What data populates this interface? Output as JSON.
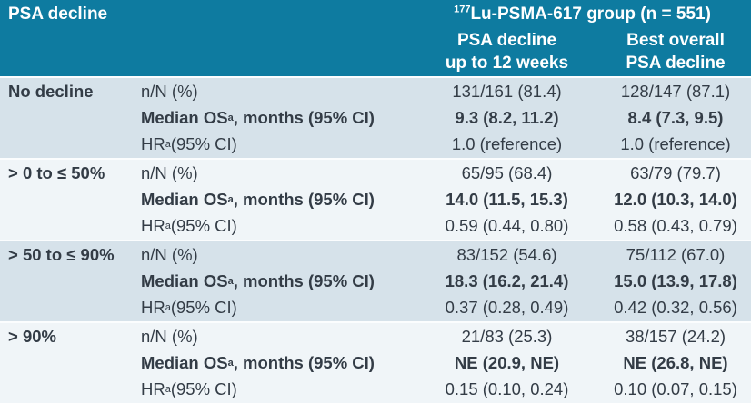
{
  "chart_data": {
    "type": "table",
    "corner_header": "PSA decline",
    "group_header": {
      "sup": "177",
      "text": "Lu-PSMA-617 group (n = 551)"
    },
    "column_headers": [
      [
        "PSA decline",
        "up to 12 weeks"
      ],
      [
        "Best overall",
        "PSA decline"
      ]
    ],
    "metric_labels": [
      {
        "pre": "n/N (%)",
        "sup": "",
        "post": ""
      },
      {
        "pre": "Median OS",
        "sup": "a",
        "post": ", months (95% CI)"
      },
      {
        "pre": "HR",
        "sup": "a",
        "post": " (95% CI)"
      }
    ],
    "row_groups": [
      {
        "label": "No decline",
        "values": [
          [
            "131/161 (81.4)",
            "128/147 (87.1)"
          ],
          [
            "9.3 (8.2, 11.2)",
            "8.4 (7.3, 9.5)"
          ],
          [
            "1.0 (reference)",
            "1.0 (reference)"
          ]
        ]
      },
      {
        "label": "> 0 to ≤ 50%",
        "values": [
          [
            "65/95 (68.4)",
            "63/79 (79.7)"
          ],
          [
            "14.0 (11.5, 15.3)",
            "12.0 (10.3, 14.0)"
          ],
          [
            "0.59 (0.44, 0.80)",
            "0.58 (0.43, 0.79)"
          ]
        ]
      },
      {
        "label": "> 50 to ≤ 90%",
        "values": [
          [
            "83/152 (54.6)",
            "75/112 (67.0)"
          ],
          [
            "18.3 (16.2, 21.4)",
            "15.0 (13.9, 17.8)"
          ],
          [
            "0.37 (0.28, 0.49)",
            "0.42 (0.32, 0.56)"
          ]
        ]
      },
      {
        "label": "> 90%",
        "values": [
          [
            "21/83 (25.3)",
            "38/157 (24.2)"
          ],
          [
            "NE (20.9, NE)",
            "NE (26.8, NE)"
          ],
          [
            "0.15 (0.10, 0.24)",
            "0.10 (0.07, 0.15)"
          ]
        ]
      }
    ],
    "colors": {
      "header_bg": "#0e7ba0",
      "band_dark": "#d6e2ea",
      "band_light": "#f0f5f8",
      "divider": "#fbfdfe",
      "body_text": "#333c46",
      "header_text": "#ffffff"
    }
  }
}
